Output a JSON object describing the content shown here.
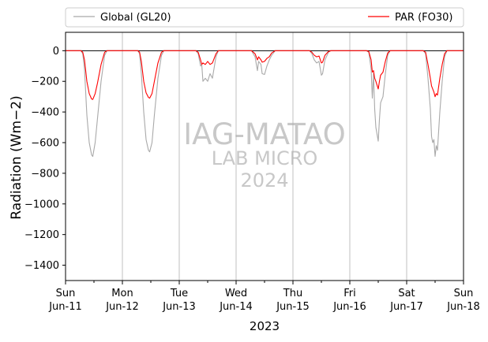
{
  "chart_data": {
    "type": "line",
    "ylabel": "Radiation (Wm−2)",
    "xlabel": "2023",
    "ylim": [
      -1500,
      120
    ],
    "yticks": [
      0,
      -200,
      -400,
      -600,
      -800,
      -1000,
      -1200,
      -1400
    ],
    "grid": "vertical lines at day boundaries",
    "legend_position": "top, above plot",
    "legend": [
      "Global (GL20)",
      "PAR (FO30)"
    ],
    "watermark": [
      "IAG-MATAO",
      "LAB MICRO",
      "2024"
    ],
    "x_ticks": [
      {
        "day": "Sun",
        "date": "Jun-11"
      },
      {
        "day": "Mon",
        "date": "Jun-12"
      },
      {
        "day": "Tue",
        "date": "Jun-13"
      },
      {
        "day": "Wed",
        "date": "Jun-14"
      },
      {
        "day": "Thu",
        "date": "Jun-15"
      },
      {
        "day": "Fri",
        "date": "Jun-16"
      },
      {
        "day": "Sat",
        "date": "Jun-17"
      },
      {
        "day": "Sun",
        "date": "Jun-18"
      }
    ],
    "series": [
      {
        "name": "Global (GL20)",
        "color": "#a9a9a9",
        "points": [
          [
            "2023-06-11 00:00",
            0
          ],
          [
            "2023-06-11 06:30",
            0
          ],
          [
            "2023-06-11 07:15",
            -20
          ],
          [
            "2023-06-11 08:00",
            -120
          ],
          [
            "2023-06-11 09:00",
            -420
          ],
          [
            "2023-06-11 10:00",
            -600
          ],
          [
            "2023-06-11 11:00",
            -680
          ],
          [
            "2023-06-11 11:30",
            -690
          ],
          [
            "2023-06-11 12:30",
            -600
          ],
          [
            "2023-06-11 13:30",
            -440
          ],
          [
            "2023-06-11 15:00",
            -200
          ],
          [
            "2023-06-11 16:30",
            -30
          ],
          [
            "2023-06-11 17:30",
            0
          ],
          [
            "2023-06-12 06:30",
            0
          ],
          [
            "2023-06-12 07:15",
            -20
          ],
          [
            "2023-06-12 08:00",
            -150
          ],
          [
            "2023-06-12 09:00",
            -400
          ],
          [
            "2023-06-12 10:00",
            -580
          ],
          [
            "2023-06-12 11:00",
            -650
          ],
          [
            "2023-06-12 11:30",
            -660
          ],
          [
            "2023-06-12 12:30",
            -600
          ],
          [
            "2023-06-12 13:30",
            -420
          ],
          [
            "2023-06-12 15:00",
            -180
          ],
          [
            "2023-06-12 16:30",
            -30
          ],
          [
            "2023-06-12 17:30",
            0
          ],
          [
            "2023-06-13 07:00",
            0
          ],
          [
            "2023-06-13 08:00",
            -20
          ],
          [
            "2023-06-13 09:00",
            -100
          ],
          [
            "2023-06-13 09:30",
            -90
          ],
          [
            "2023-06-13 10:00",
            -200
          ],
          [
            "2023-06-13 11:00",
            -180
          ],
          [
            "2023-06-13 12:00",
            -200
          ],
          [
            "2023-06-13 13:00",
            -150
          ],
          [
            "2023-06-13 14:00",
            -180
          ],
          [
            "2023-06-13 15:30",
            -40
          ],
          [
            "2023-06-13 16:30",
            0
          ],
          [
            "2023-06-14 06:30",
            0
          ],
          [
            "2023-06-14 08:00",
            -40
          ],
          [
            "2023-06-14 09:00",
            -130
          ],
          [
            "2023-06-14 09:30",
            -70
          ],
          [
            "2023-06-14 10:30",
            -90
          ],
          [
            "2023-06-14 11:00",
            -150
          ],
          [
            "2023-06-14 12:00",
            -155
          ],
          [
            "2023-06-14 13:00",
            -100
          ],
          [
            "2023-06-14 14:00",
            -60
          ],
          [
            "2023-06-14 15:00",
            -30
          ],
          [
            "2023-06-14 16:30",
            0
          ],
          [
            "2023-06-15 07:00",
            0
          ],
          [
            "2023-06-15 08:00",
            -20
          ],
          [
            "2023-06-15 09:00",
            -60
          ],
          [
            "2023-06-15 10:00",
            -80
          ],
          [
            "2023-06-15 11:00",
            -70
          ],
          [
            "2023-06-15 12:00",
            -160
          ],
          [
            "2023-06-15 12:30",
            -150
          ],
          [
            "2023-06-15 13:30",
            -60
          ],
          [
            "2023-06-15 15:00",
            -10
          ],
          [
            "2023-06-15 16:00",
            0
          ],
          [
            "2023-06-16 07:00",
            0
          ],
          [
            "2023-06-16 08:00",
            -10
          ],
          [
            "2023-06-16 09:00",
            -120
          ],
          [
            "2023-06-16 09:30",
            -310
          ],
          [
            "2023-06-16 10:00",
            -150
          ],
          [
            "2023-06-16 10:30",
            -380
          ],
          [
            "2023-06-16 11:00",
            -500
          ],
          [
            "2023-06-16 12:00",
            -590
          ],
          [
            "2023-06-16 12:30",
            -450
          ],
          [
            "2023-06-16 13:00",
            -340
          ],
          [
            "2023-06-16 14:00",
            -300
          ],
          [
            "2023-06-16 15:00",
            -150
          ],
          [
            "2023-06-16 16:00",
            -30
          ],
          [
            "2023-06-16 17:00",
            0
          ],
          [
            "2023-06-17 07:00",
            0
          ],
          [
            "2023-06-17 08:00",
            -20
          ],
          [
            "2023-06-17 09:00",
            -180
          ],
          [
            "2023-06-17 10:00",
            -380
          ],
          [
            "2023-06-17 10:30",
            -560
          ],
          [
            "2023-06-17 11:00",
            -600
          ],
          [
            "2023-06-17 11:30",
            -580
          ],
          [
            "2023-06-17 12:00",
            -690
          ],
          [
            "2023-06-17 12:30",
            -620
          ],
          [
            "2023-06-17 13:00",
            -650
          ],
          [
            "2023-06-17 14:00",
            -400
          ],
          [
            "2023-06-17 15:00",
            -200
          ],
          [
            "2023-06-17 16:00",
            -40
          ],
          [
            "2023-06-17 17:00",
            0
          ],
          [
            "2023-06-18 00:00",
            0
          ]
        ]
      },
      {
        "name": "PAR (FO30)",
        "color": "#ff0000",
        "points": [
          [
            "2023-06-11 00:00",
            0
          ],
          [
            "2023-06-11 06:30",
            0
          ],
          [
            "2023-06-11 07:15",
            -10
          ],
          [
            "2023-06-11 08:00",
            -60
          ],
          [
            "2023-06-11 09:00",
            -200
          ],
          [
            "2023-06-11 10:00",
            -280
          ],
          [
            "2023-06-11 11:00",
            -315
          ],
          [
            "2023-06-11 11:30",
            -318
          ],
          [
            "2023-06-11 12:30",
            -280
          ],
          [
            "2023-06-11 13:30",
            -210
          ],
          [
            "2023-06-11 15:00",
            -90
          ],
          [
            "2023-06-11 16:30",
            -10
          ],
          [
            "2023-06-11 17:30",
            0
          ],
          [
            "2023-06-12 06:30",
            0
          ],
          [
            "2023-06-12 07:15",
            -10
          ],
          [
            "2023-06-12 08:00",
            -70
          ],
          [
            "2023-06-12 09:00",
            -200
          ],
          [
            "2023-06-12 10:00",
            -275
          ],
          [
            "2023-06-12 11:00",
            -305
          ],
          [
            "2023-06-12 11:30",
            -310
          ],
          [
            "2023-06-12 12:30",
            -280
          ],
          [
            "2023-06-12 13:30",
            -200
          ],
          [
            "2023-06-12 15:00",
            -80
          ],
          [
            "2023-06-12 16:30",
            -10
          ],
          [
            "2023-06-12 17:30",
            0
          ],
          [
            "2023-06-13 07:00",
            0
          ],
          [
            "2023-06-13 08:00",
            -10
          ],
          [
            "2023-06-13 09:00",
            -60
          ],
          [
            "2023-06-13 09:30",
            -90
          ],
          [
            "2023-06-13 10:00",
            -80
          ],
          [
            "2023-06-13 11:00",
            -90
          ],
          [
            "2023-06-13 12:00",
            -70
          ],
          [
            "2023-06-13 13:00",
            -90
          ],
          [
            "2023-06-13 14:00",
            -80
          ],
          [
            "2023-06-13 15:30",
            -20
          ],
          [
            "2023-06-13 16:30",
            0
          ],
          [
            "2023-06-14 06:30",
            0
          ],
          [
            "2023-06-14 08:00",
            -20
          ],
          [
            "2023-06-14 09:00",
            -60
          ],
          [
            "2023-06-14 09:30",
            -40
          ],
          [
            "2023-06-14 10:30",
            -60
          ],
          [
            "2023-06-14 11:00",
            -75
          ],
          [
            "2023-06-14 12:00",
            -70
          ],
          [
            "2023-06-14 13:00",
            -50
          ],
          [
            "2023-06-14 14:00",
            -40
          ],
          [
            "2023-06-14 15:00",
            -15
          ],
          [
            "2023-06-14 16:30",
            0
          ],
          [
            "2023-06-15 07:00",
            0
          ],
          [
            "2023-06-15 08:00",
            -10
          ],
          [
            "2023-06-15 09:00",
            -30
          ],
          [
            "2023-06-15 10:00",
            -40
          ],
          [
            "2023-06-15 11:00",
            -35
          ],
          [
            "2023-06-15 12:00",
            -80
          ],
          [
            "2023-06-15 12:30",
            -75
          ],
          [
            "2023-06-15 13:30",
            -30
          ],
          [
            "2023-06-15 15:00",
            -5
          ],
          [
            "2023-06-15 16:00",
            0
          ],
          [
            "2023-06-16 07:00",
            0
          ],
          [
            "2023-06-16 08:00",
            -5
          ],
          [
            "2023-06-16 09:00",
            -60
          ],
          [
            "2023-06-16 09:30",
            -140
          ],
          [
            "2023-06-16 10:00",
            -130
          ],
          [
            "2023-06-16 10:30",
            -180
          ],
          [
            "2023-06-16 11:00",
            -200
          ],
          [
            "2023-06-16 12:00",
            -250
          ],
          [
            "2023-06-16 12:30",
            -200
          ],
          [
            "2023-06-16 13:00",
            -160
          ],
          [
            "2023-06-16 14:00",
            -140
          ],
          [
            "2023-06-16 15:00",
            -70
          ],
          [
            "2023-06-16 16:00",
            -15
          ],
          [
            "2023-06-16 17:00",
            0
          ],
          [
            "2023-06-17 07:00",
            0
          ],
          [
            "2023-06-17 08:00",
            -10
          ],
          [
            "2023-06-17 09:00",
            -90
          ],
          [
            "2023-06-17 10:00",
            -180
          ],
          [
            "2023-06-17 10:30",
            -230
          ],
          [
            "2023-06-17 11:00",
            -250
          ],
          [
            "2023-06-17 11:30",
            -270
          ],
          [
            "2023-06-17 12:00",
            -300
          ],
          [
            "2023-06-17 12:30",
            -280
          ],
          [
            "2023-06-17 13:00",
            -290
          ],
          [
            "2023-06-17 14:00",
            -180
          ],
          [
            "2023-06-17 15:00",
            -90
          ],
          [
            "2023-06-17 16:00",
            -20
          ],
          [
            "2023-06-17 17:00",
            0
          ],
          [
            "2023-06-18 00:00",
            0
          ]
        ]
      }
    ]
  }
}
